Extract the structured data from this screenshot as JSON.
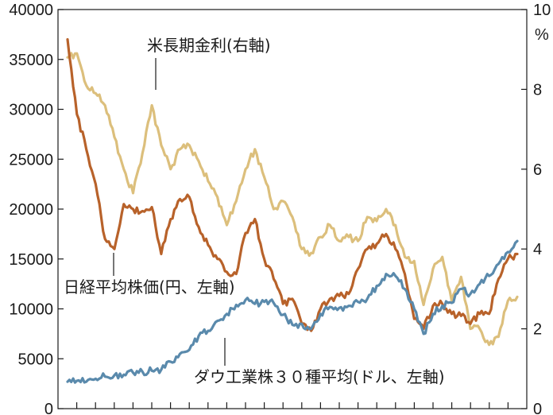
{
  "chart_data": {
    "type": "line",
    "title": "",
    "x": [
      1990,
      1990.5,
      1991,
      1991.5,
      1992,
      1992.5,
      1993,
      1993.5,
      1994,
      1994.5,
      1995,
      1995.5,
      1996,
      1996.5,
      1997,
      1997.5,
      1998,
      1998.5,
      1999,
      1999.5,
      2000,
      2000.5,
      2001,
      2001.5,
      2002,
      2002.5,
      2003,
      2003.5,
      2004,
      2004.5,
      2005,
      2005.5,
      2006,
      2006.5,
      2007,
      2007.5,
      2008,
      2008.5,
      2009,
      2009.5,
      2010,
      2010.5,
      2011,
      2011.5,
      2012,
      2012.5,
      2013,
      2013.5,
      2014
    ],
    "axes": {
      "left": {
        "min": 0,
        "max": 40000,
        "ticks": [
          "0",
          "5000",
          "10000",
          "15000",
          "20000",
          "25000",
          "30000",
          "35000",
          "40000"
        ]
      },
      "right": {
        "min": 0,
        "max": 10,
        "ticks": [
          "0",
          "2",
          "4",
          "6",
          "8",
          "10"
        ],
        "unit_label": "%"
      },
      "x_tick_count": 24
    },
    "series": [
      {
        "name": "米長期金利(右軸)",
        "axis": "right",
        "color": "#dcbf7c",
        "values": [
          8.8,
          8.9,
          8.1,
          7.9,
          7.6,
          6.8,
          6.0,
          5.4,
          6.4,
          7.6,
          6.6,
          6.0,
          6.5,
          6.6,
          6.2,
          5.7,
          5.3,
          4.6,
          5.2,
          6.0,
          6.5,
          5.8,
          5.0,
          5.2,
          4.8,
          4.0,
          3.9,
          4.3,
          4.6,
          4.2,
          4.3,
          4.2,
          4.8,
          4.7,
          5.0,
          4.6,
          3.8,
          3.7,
          2.6,
          3.5,
          3.8,
          2.7,
          3.3,
          2.0,
          2.0,
          1.6,
          1.8,
          2.7,
          2.8
        ]
      },
      {
        "name": "日経平均株価(円、左軸)",
        "axis": "left",
        "color": "#b8622a",
        "values": [
          37000,
          29500,
          26000,
          22500,
          17000,
          16000,
          20500,
          20000,
          19800,
          20200,
          15500,
          19000,
          21000,
          21200,
          18200,
          16400,
          15000,
          13700,
          13500,
          17600,
          19000,
          15000,
          13000,
          10500,
          11000,
          8500,
          7800,
          10000,
          11000,
          11300,
          11500,
          14000,
          16000,
          16500,
          17500,
          16000,
          13500,
          9000,
          8000,
          10300,
          10500,
          9500,
          9300,
          8500,
          9500,
          9500,
          13000,
          15000,
          15500
        ]
      },
      {
        "name": "ダウ工業株３０種平均(ドル、左軸)",
        "axis": "left",
        "color": "#5a8aac",
        "values": [
          2700,
          2800,
          2700,
          3000,
          3200,
          3350,
          3400,
          3600,
          3700,
          3800,
          3900,
          4700,
          5500,
          5900,
          7300,
          7800,
          8800,
          9500,
          10400,
          10900,
          10500,
          10700,
          10600,
          9400,
          8400,
          8500,
          8000,
          9500,
          10200,
          10100,
          10300,
          10700,
          11000,
          12300,
          13500,
          13300,
          12000,
          10000,
          7500,
          9500,
          10300,
          10600,
          12000,
          11500,
          12500,
          13300,
          14500,
          15700,
          16800
        ]
      }
    ]
  }
}
